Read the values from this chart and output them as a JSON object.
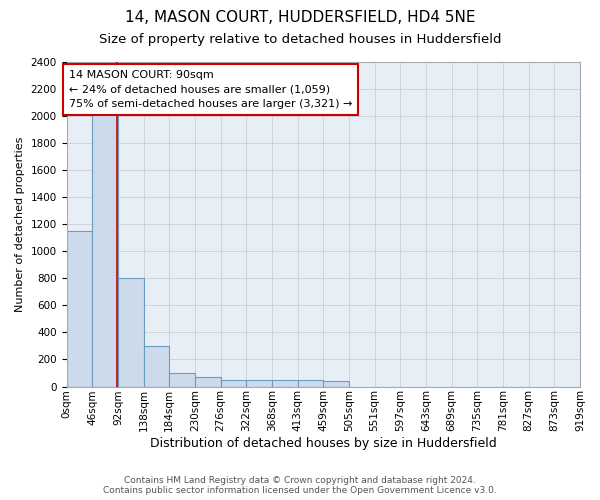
{
  "title": "14, MASON COURT, HUDDERSFIELD, HD4 5NE",
  "subtitle": "Size of property relative to detached houses in Huddersfield",
  "xlabel": "Distribution of detached houses by size in Huddersfield",
  "ylabel": "Number of detached properties",
  "bin_labels": [
    "0sqm",
    "46sqm",
    "92sqm",
    "138sqm",
    "184sqm",
    "230sqm",
    "276sqm",
    "322sqm",
    "368sqm",
    "413sqm",
    "459sqm",
    "505sqm",
    "551sqm",
    "597sqm",
    "643sqm",
    "689sqm",
    "735sqm",
    "781sqm",
    "827sqm",
    "873sqm",
    "919sqm"
  ],
  "bar_heights": [
    1150,
    2200,
    800,
    300,
    100,
    70,
    50,
    45,
    45,
    45,
    40,
    0,
    0,
    0,
    0,
    0,
    0,
    0,
    0,
    0
  ],
  "bar_color": "#cddaeb",
  "bar_edge_color": "#6a9cbf",
  "grid_color": "#c8c8c8",
  "background_color": "#e8eef5",
  "ylim": [
    0,
    2400
  ],
  "yticks": [
    0,
    200,
    400,
    600,
    800,
    1000,
    1200,
    1400,
    1600,
    1800,
    2000,
    2200,
    2400
  ],
  "property_size_sqm": 90,
  "red_line_color": "#cc0000",
  "annotation_text": "14 MASON COURT: 90sqm\n← 24% of detached houses are smaller (1,059)\n75% of semi-detached houses are larger (3,321) →",
  "annotation_box_color": "#cc0000",
  "footer_line1": "Contains HM Land Registry data © Crown copyright and database right 2024.",
  "footer_line2": "Contains public sector information licensed under the Open Government Licence v3.0.",
  "title_fontsize": 11,
  "subtitle_fontsize": 9.5,
  "xlabel_fontsize": 9,
  "ylabel_fontsize": 8,
  "tick_fontsize": 7.5,
  "annotation_fontsize": 8,
  "footer_fontsize": 6.5,
  "num_bins": 20,
  "bin_width": 46
}
